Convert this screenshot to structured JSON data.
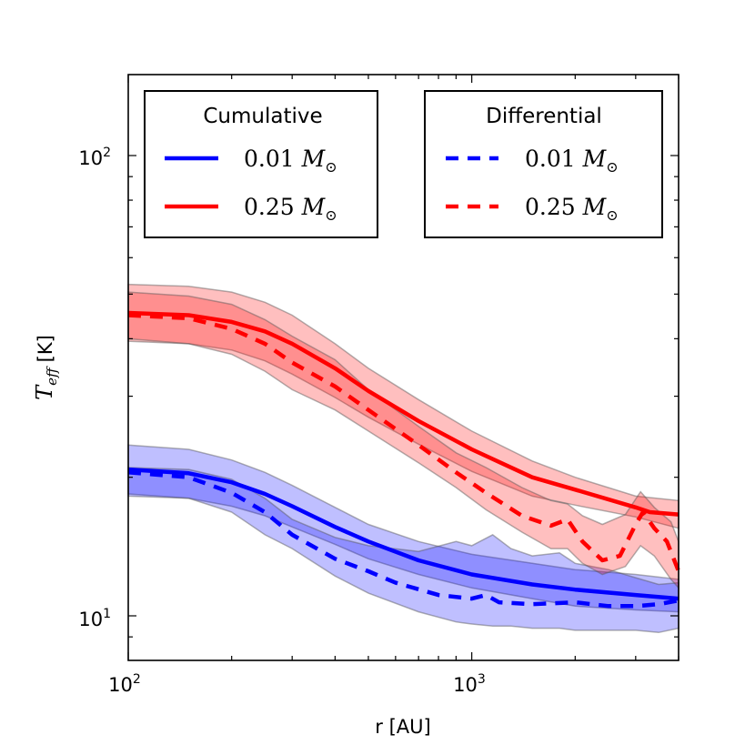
{
  "chart_data": {
    "type": "line",
    "xscale": "log",
    "yscale": "log",
    "xlim": [
      100,
      4000
    ],
    "ylim": [
      8.5,
      160
    ],
    "xlabel": "r [AU]",
    "ylabel": {
      "symbol": "T",
      "subscript": "eff",
      "unit": "[K]"
    },
    "x_ticks": [
      {
        "value": 100,
        "base": "10",
        "exp": "2"
      },
      {
        "value": 1000,
        "base": "10",
        "exp": "3"
      }
    ],
    "y_ticks": [
      {
        "value": 10,
        "base": "10",
        "exp": "1"
      },
      {
        "value": 100,
        "base": "10",
        "exp": "2"
      }
    ],
    "legends": [
      {
        "title": "Cumulative",
        "placement": "top-left",
        "entries": [
          {
            "series": "cum_001",
            "label_num": "0.01",
            "label_sym": "M",
            "label_sub": "⊙"
          },
          {
            "series": "cum_025",
            "label_num": "0.25",
            "label_sym": "M",
            "label_sub": "⊙"
          }
        ]
      },
      {
        "title": "Differential",
        "placement": "top-right",
        "entries": [
          {
            "series": "dif_001",
            "label_num": "0.01",
            "label_sym": "M",
            "label_sub": "⊙"
          },
          {
            "series": "dif_025",
            "label_num": "0.25",
            "label_sym": "M",
            "label_sub": "⊙"
          }
        ]
      }
    ],
    "bands": [
      {
        "id": "band_cum_001",
        "color": "#0000ff",
        "opacity": 0.25,
        "x": [
          100,
          150,
          200,
          250,
          300,
          400,
          500,
          700,
          1000,
          1500,
          2000,
          3000,
          4000
        ],
        "upper": [
          23.5,
          23.0,
          21.8,
          20.5,
          19.2,
          17.2,
          15.8,
          14.5,
          13.6,
          13.0,
          12.6,
          12.3,
          12.0
        ],
        "lower": [
          18.4,
          18.0,
          17.3,
          16.5,
          15.6,
          14.3,
          13.3,
          12.3,
          11.5,
          10.9,
          10.5,
          10.3,
          10.2
        ]
      },
      {
        "id": "band_dif_001",
        "color": "#0000ff",
        "opacity": 0.25,
        "x": [
          100,
          150,
          200,
          250,
          300,
          400,
          500,
          700,
          900,
          1000,
          1150,
          1300,
          1500,
          1800,
          2000,
          2500,
          3000,
          3500,
          4000
        ],
        "upper": [
          21.0,
          20.8,
          19.8,
          18.0,
          16.2,
          14.8,
          14.2,
          13.8,
          14.5,
          14.2,
          15.0,
          14.0,
          13.5,
          13.7,
          13.0,
          12.6,
          12.1,
          11.7,
          11.8
        ],
        "lower": [
          18.2,
          18.0,
          16.8,
          15.0,
          14.0,
          12.2,
          11.2,
          10.2,
          9.7,
          9.6,
          9.5,
          9.5,
          9.4,
          9.4,
          9.3,
          9.3,
          9.3,
          9.2,
          9.4
        ]
      },
      {
        "id": "band_cum_025",
        "color": "#ff0000",
        "opacity": 0.25,
        "x": [
          100,
          150,
          200,
          250,
          300,
          400,
          500,
          700,
          1000,
          1500,
          2000,
          3000,
          4000
        ],
        "upper": [
          52.5,
          52.0,
          50.5,
          48.0,
          45.0,
          39.0,
          34.5,
          29.5,
          25.2,
          21.7,
          20.0,
          18.2,
          17.8
        ],
        "lower": [
          39.5,
          39.0,
          37.8,
          35.8,
          33.5,
          29.8,
          27.0,
          23.6,
          20.6,
          18.2,
          17.4,
          16.4,
          15.5
        ]
      },
      {
        "id": "band_dif_025",
        "color": "#ff0000",
        "opacity": 0.25,
        "x": [
          100,
          150,
          200,
          250,
          300,
          400,
          500,
          700,
          900,
          1100,
          1400,
          1700,
          1900,
          2100,
          2400,
          2800,
          3100,
          3400,
          3800,
          4000
        ],
        "upper": [
          50.5,
          49.5,
          47.5,
          44.0,
          40.5,
          36.0,
          31.0,
          25.8,
          22.6,
          21.0,
          19.0,
          17.8,
          17.5,
          16.5,
          15.8,
          16.6,
          18.6,
          17.2,
          16.0,
          14.5
        ],
        "lower": [
          40.0,
          39.0,
          37.0,
          34.0,
          31.0,
          28.0,
          25.2,
          21.5,
          19.0,
          17.0,
          15.2,
          14.0,
          14.0,
          13.0,
          12.3,
          12.8,
          14.2,
          13.5,
          12.0,
          11.5
        ]
      }
    ],
    "series": [
      {
        "id": "cum_001",
        "color": "#0000ff",
        "dash": "solid",
        "x": [
          100,
          150,
          200,
          250,
          300,
          400,
          500,
          700,
          1000,
          1500,
          2000,
          3000,
          4000
        ],
        "y": [
          20.8,
          20.4,
          19.5,
          18.4,
          17.3,
          15.6,
          14.5,
          13.2,
          12.3,
          11.7,
          11.4,
          11.1,
          10.9
        ]
      },
      {
        "id": "dif_001",
        "color": "#0000ff",
        "dash": "dashed",
        "x": [
          100,
          150,
          200,
          250,
          300,
          400,
          500,
          600,
          800,
          1000,
          1100,
          1200,
          1500,
          2000,
          2500,
          3000,
          3500,
          4000
        ],
        "y": [
          20.5,
          20.0,
          18.5,
          16.8,
          15.0,
          13.3,
          12.5,
          11.8,
          11.1,
          10.9,
          11.1,
          10.7,
          10.6,
          10.7,
          10.5,
          10.5,
          10.6,
          10.8
        ]
      },
      {
        "id": "cum_025",
        "color": "#ff0000",
        "dash": "solid",
        "x": [
          100,
          150,
          200,
          250,
          300,
          400,
          500,
          700,
          1000,
          1500,
          2000,
          3000,
          3300,
          4000
        ],
        "y": [
          45.5,
          45.0,
          43.5,
          41.5,
          39.0,
          34.5,
          30.8,
          26.5,
          23.0,
          20.0,
          18.8,
          17.2,
          16.8,
          16.6
        ]
      },
      {
        "id": "dif_025",
        "color": "#ff0000",
        "dash": "dashed",
        "x": [
          100,
          150,
          200,
          250,
          300,
          400,
          500,
          700,
          900,
          1100,
          1400,
          1700,
          1900,
          2100,
          2400,
          2700,
          3000,
          3150,
          3400,
          3700,
          4000
        ],
        "y": [
          45.0,
          44.3,
          42.0,
          39.0,
          35.5,
          31.5,
          28.0,
          23.5,
          20.5,
          18.5,
          16.5,
          15.7,
          16.2,
          14.5,
          13.2,
          13.5,
          15.8,
          16.8,
          15.5,
          14.5,
          12.5
        ]
      }
    ]
  }
}
